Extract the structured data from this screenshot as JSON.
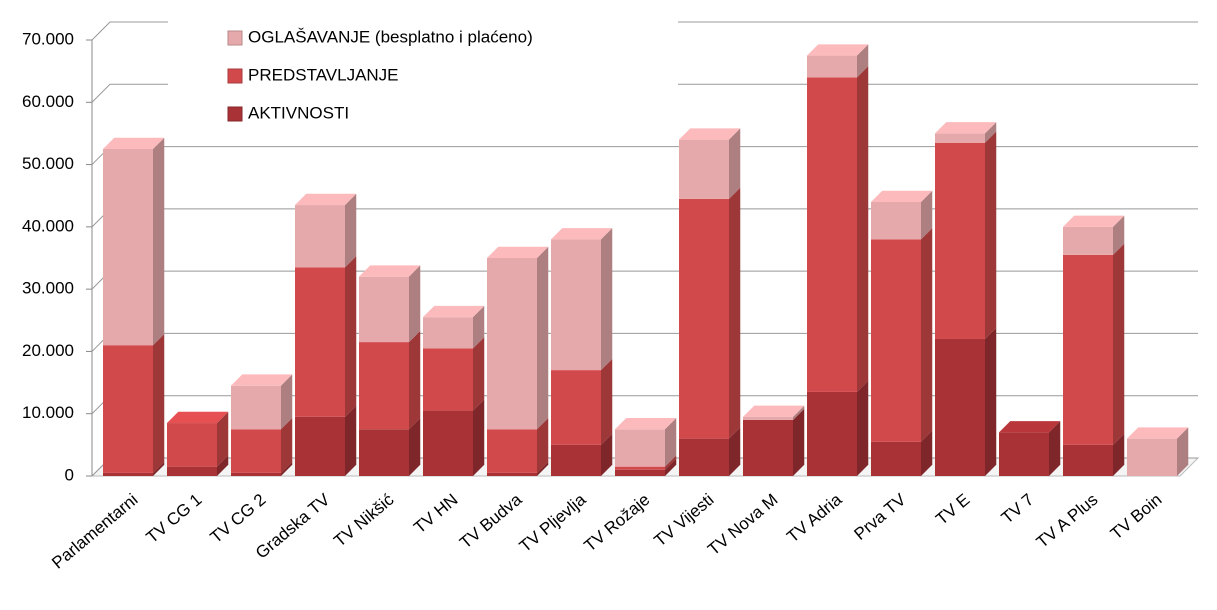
{
  "chart_data": {
    "type": "stacked-bar-3d",
    "categories": [
      "Parlamentarni",
      "TV CG 1",
      "TV CG 2",
      "Gradska TV",
      "TV Nikšić",
      "TV HN",
      "TV Budva",
      "TV Pljevlja",
      "TV Rožaje",
      "TV Vijesti",
      "TV Nova M",
      "TV Adria",
      "Prva TV",
      "TV E",
      "TV 7",
      "TV A Plus",
      "TV Boin"
    ],
    "series": [
      {
        "name": "AKTIVNOSTI",
        "color": "#a83236",
        "values": [
          500,
          1500,
          500,
          9500,
          7500,
          10500,
          500,
          5000,
          1000,
          6000,
          9000,
          13500,
          5500,
          22000,
          7000,
          5000,
          0
        ]
      },
      {
        "name": "PREDSTAVLJANJE",
        "color": "#d2494b",
        "values": [
          20500,
          7000,
          7000,
          24000,
          14000,
          10000,
          7000,
          12000,
          500,
          38500,
          0,
          50500,
          32500,
          31500,
          0,
          30500,
          0
        ]
      },
      {
        "name": "OGLAŠAVANJE (besplatno i plaćeno)",
        "color": "#e6a9ab",
        "values": [
          31500,
          0,
          7000,
          10000,
          10500,
          5000,
          27500,
          21000,
          6000,
          9500,
          500,
          3500,
          6000,
          1500,
          0,
          4500,
          6000
        ]
      }
    ],
    "ylim": [
      0,
      70000
    ],
    "yticks": [
      0,
      {
        "value": 10000,
        "label": "10.000"
      },
      {
        "value": 20000,
        "label": "20.000"
      },
      {
        "value": 30000,
        "label": "30.000"
      },
      {
        "value": 40000,
        "label": "40.000"
      },
      {
        "value": 50000,
        "label": "50.000"
      },
      {
        "value": 60000,
        "label": "60.000"
      },
      {
        "value": 70000,
        "label": "70.000"
      }
    ],
    "grid": true,
    "legend": "top-left"
  }
}
